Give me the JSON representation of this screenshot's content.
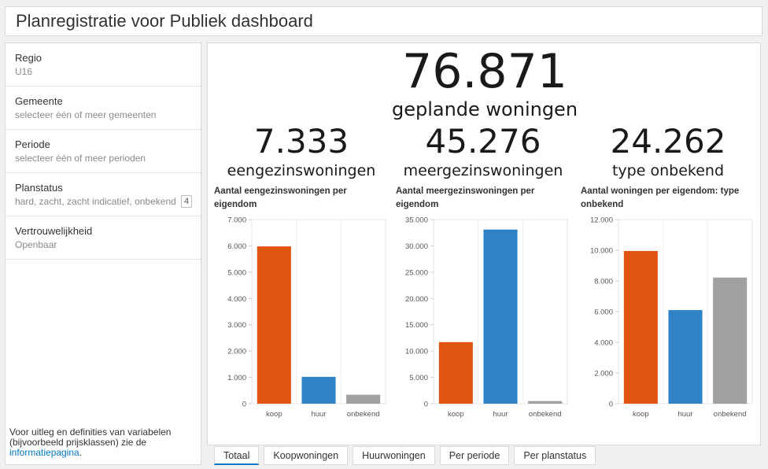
{
  "header": {
    "title": "Planregistratie voor Publiek dashboard"
  },
  "filters": [
    {
      "label": "Regio",
      "value": "U16"
    },
    {
      "label": "Gemeente",
      "value": "selecteer één of meer gemeenten"
    },
    {
      "label": "Periode",
      "value": "selecteer één of meer perioden"
    },
    {
      "label": "Planstatus",
      "value": "hard, zacht, zacht indicatief, onbekend",
      "count": "4"
    },
    {
      "label": "Vertrouwelijkheid",
      "value": "Openbaar"
    }
  ],
  "sidebar_note": {
    "text": "Voor uitleg en definities van variabelen (bijvoorbeeld prijsklassen) zie de ",
    "link": "informatiepagina",
    "suffix": "."
  },
  "totals": {
    "number": "76.871",
    "label": "geplande woningen"
  },
  "columns": [
    {
      "number": "7.333",
      "label": "eengezinswoningen",
      "chart_title": "Aantal eengezinswoningen per eigendom"
    },
    {
      "number": "45.276",
      "label": "meergezinswoningen",
      "chart_title": "Aantal meergezinswoningen per eigendom"
    },
    {
      "number": "24.262",
      "label": "type onbekend",
      "chart_title": "Aantal woningen per eigendom: type onbekend"
    }
  ],
  "colors": {
    "koop": "#e1540f",
    "huur": "#2f82c6",
    "onbekend": "#a0a0a0",
    "accent": "#0079c1"
  },
  "chart_data": [
    {
      "type": "bar",
      "title": "Aantal eengezinswoningen per eigendom",
      "categories": [
        "koop",
        "huur",
        "onbekend"
      ],
      "values": [
        5980,
        1020,
        340
      ],
      "ylim": [
        0,
        7000
      ],
      "ticks": [
        0,
        1000,
        2000,
        3000,
        4000,
        5000,
        6000,
        7000
      ],
      "tick_labels": [
        "0",
        "1.000",
        "2.000",
        "3.000",
        "4.000",
        "5.000",
        "6.000",
        "7.000"
      ]
    },
    {
      "type": "bar",
      "title": "Aantal meergezinswoningen per eigendom",
      "categories": [
        "koop",
        "huur",
        "onbekend"
      ],
      "values": [
        11700,
        33100,
        500
      ],
      "ylim": [
        0,
        35000
      ],
      "ticks": [
        0,
        5000,
        10000,
        15000,
        20000,
        25000,
        30000,
        35000
      ],
      "tick_labels": [
        "0",
        "5.000",
        "10.000",
        "15.000",
        "20.000",
        "25.000",
        "30.000",
        "35.000"
      ]
    },
    {
      "type": "bar",
      "title": "Aantal woningen per eigendom: type onbekend",
      "categories": [
        "koop",
        "huur",
        "onbekend"
      ],
      "values": [
        9950,
        6100,
        8220
      ],
      "ylim": [
        0,
        12000
      ],
      "ticks": [
        0,
        2000,
        4000,
        6000,
        8000,
        10000,
        12000
      ],
      "tick_labels": [
        "0",
        "2.000",
        "4.000",
        "6.000",
        "8.000",
        "10.000",
        "12.000"
      ]
    }
  ],
  "tabs": [
    {
      "label": "Totaal",
      "active": true
    },
    {
      "label": "Koopwoningen",
      "active": false
    },
    {
      "label": "Huurwoningen",
      "active": false
    },
    {
      "label": "Per periode",
      "active": false
    },
    {
      "label": "Per planstatus",
      "active": false
    }
  ]
}
